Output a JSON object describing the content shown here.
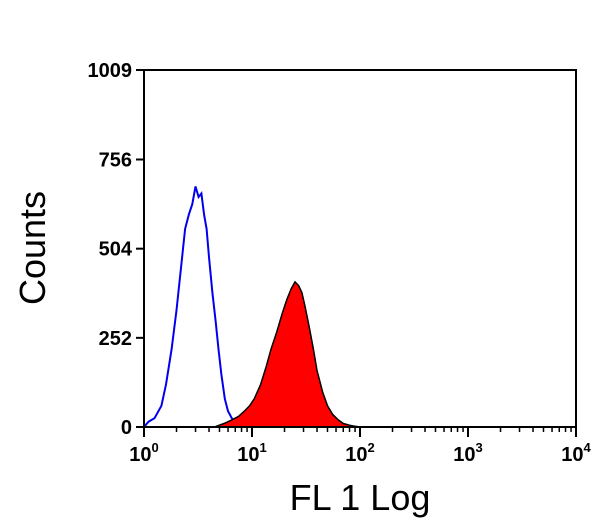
{
  "chart_data": {
    "type": "area",
    "xlabel": "FL 1 Log",
    "ylabel": "Counts",
    "x_scale": "log",
    "xlim": [
      1,
      10000
    ],
    "ylim": [
      0,
      1009
    ],
    "x_ticks": [
      {
        "base": "10",
        "exp": "0",
        "value": 1
      },
      {
        "base": "10",
        "exp": "1",
        "value": 10
      },
      {
        "base": "10",
        "exp": "2",
        "value": 100
      },
      {
        "base": "10",
        "exp": "3",
        "value": 1000
      },
      {
        "base": "10",
        "exp": "4",
        "value": 10000
      }
    ],
    "y_ticks": [
      "0",
      "252",
      "504",
      "756",
      "1009"
    ],
    "grid": false,
    "series": [
      {
        "color": "#0000ee",
        "style": "outline",
        "x": [
          1.0,
          1.1,
          1.25,
          1.45,
          1.6,
          1.8,
          2.0,
          2.2,
          2.4,
          2.6,
          2.8,
          3.0,
          3.2,
          3.4,
          3.6,
          3.8,
          4.0,
          4.3,
          4.6,
          4.9,
          5.2,
          5.6,
          6.0,
          6.5,
          7.0,
          7.8,
          8.5
        ],
        "y": [
          0,
          15,
          25,
          60,
          120,
          220,
          330,
          450,
          560,
          600,
          630,
          680,
          650,
          660,
          600,
          560,
          480,
          380,
          300,
          220,
          150,
          80,
          45,
          25,
          15,
          5,
          0
        ]
      },
      {
        "color": "#ff0000",
        "style": "filled",
        "x": [
          4.5,
          5.5,
          6.5,
          7.5,
          8.5,
          9.5,
          10.5,
          12.0,
          13.5,
          15.0,
          17.0,
          19.0,
          21.0,
          23.0,
          25.0,
          27.0,
          29.0,
          31.0,
          34.0,
          37.0,
          40.0,
          45.0,
          50.0,
          56.0,
          63.0,
          70.0,
          80.0,
          90.0,
          100.0
        ],
        "y": [
          0,
          10,
          20,
          30,
          45,
          60,
          80,
          120,
          170,
          220,
          270,
          320,
          360,
          390,
          410,
          400,
          380,
          340,
          280,
          220,
          160,
          100,
          60,
          35,
          20,
          10,
          5,
          2,
          0
        ]
      }
    ]
  }
}
